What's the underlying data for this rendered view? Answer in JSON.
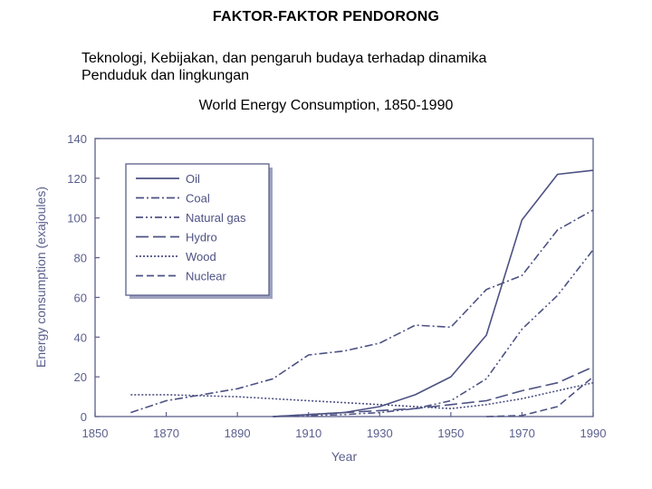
{
  "page": {
    "heading": "FAKTOR-FAKTOR PENDORONG",
    "subtitle_line1": "Teknologi, Kebijakan, dan pengaruh budaya terhadap dinamika",
    "subtitle_line2": "Penduduk dan lingkungan"
  },
  "colors": {
    "series": "#4d5283",
    "axis": "#5a5f8c",
    "legend_shadow": "#9ea2be"
  },
  "chart_data": {
    "type": "line",
    "title": "World Energy Consumption, 1850-1990",
    "xlabel": "Year",
    "ylabel": "Energy consumption (exajoules)",
    "xlim": [
      1850,
      1990
    ],
    "ylim": [
      0,
      140
    ],
    "xticks": [
      1850,
      1870,
      1890,
      1910,
      1930,
      1950,
      1970,
      1990
    ],
    "yticks": [
      0,
      20,
      40,
      60,
      80,
      100,
      120,
      140
    ],
    "legend_position": "top-left",
    "grid": false,
    "series": [
      {
        "name": "Oil",
        "dash": "solid",
        "x": [
          1900,
          1910,
          1920,
          1930,
          1940,
          1950,
          1960,
          1970,
          1980,
          1990
        ],
        "y": [
          0,
          1,
          2,
          5,
          11,
          20,
          41,
          99,
          122,
          124
        ]
      },
      {
        "name": "Coal",
        "dash": "dashdot",
        "x": [
          1860,
          1870,
          1880,
          1890,
          1900,
          1910,
          1920,
          1930,
          1940,
          1950,
          1960,
          1970,
          1980,
          1990
        ],
        "y": [
          2,
          8,
          11,
          14,
          19,
          31,
          33,
          37,
          46,
          45,
          64,
          71,
          94,
          104
        ]
      },
      {
        "name": "Natural gas",
        "dash": "dashdotdot",
        "x": [
          1900,
          1910,
          1920,
          1930,
          1940,
          1950,
          1960,
          1970,
          1980,
          1990
        ],
        "y": [
          0,
          0.5,
          1,
          2,
          4,
          8,
          19,
          44,
          61,
          84
        ]
      },
      {
        "name": "Hydro",
        "dash": "longdash",
        "x": [
          1900,
          1910,
          1920,
          1930,
          1940,
          1950,
          1960,
          1970,
          1980,
          1990
        ],
        "y": [
          0,
          1,
          2,
          3,
          4,
          6,
          8,
          13,
          17,
          25
        ]
      },
      {
        "name": "Wood",
        "dash": "dotted",
        "x": [
          1860,
          1870,
          1880,
          1890,
          1900,
          1910,
          1920,
          1930,
          1940,
          1950,
          1960,
          1970,
          1980,
          1990
        ],
        "y": [
          11,
          11,
          10.5,
          10,
          9,
          8,
          7,
          6,
          5,
          4,
          6,
          9,
          13,
          17
        ]
      },
      {
        "name": "Nuclear",
        "dash": "dashed",
        "x": [
          1960,
          1970,
          1980,
          1990
        ],
        "y": [
          0,
          0.5,
          5,
          20
        ]
      }
    ]
  }
}
